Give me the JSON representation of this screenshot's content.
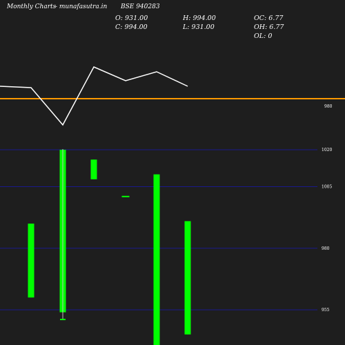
{
  "header": {
    "brand": "Monthly Charts",
    "site": "- munafasutra.in",
    "symbol": "BSE 940283"
  },
  "ohlc": {
    "open": "O: 931.00",
    "close": "C: 994.00",
    "high": "H: 994.00",
    "low": "L: 931.00",
    "oc": "OC: 6.77",
    "oh": "OH: 6.77",
    "ol": "OL: 0"
  },
  "colors": {
    "background": "#1e1e1e",
    "candle": "#00ff00",
    "price_line": "#ffffff",
    "marker_line": "#ff9900",
    "grid": "#1a1a8c",
    "text": "#ffffff"
  },
  "chart_data": [
    {
      "type": "line",
      "title": "",
      "ticks": [
        "980"
      ],
      "series": [
        {
          "values": [
            null,
            null,
            null,
            null,
            null,
            null
          ]
        }
      ],
      "reference_line": {
        "value": 980,
        "label": "980"
      }
    },
    {
      "type": "bar",
      "title": "",
      "ylim": [
        950,
        1025
      ],
      "ticks": [
        {
          "label": "1020",
          "value": 1020
        },
        {
          "label": "1005",
          "value": 1005
        },
        {
          "label": "980",
          "value": 980
        },
        {
          "label": "955",
          "value": 955
        }
      ],
      "candles": [
        {
          "open": 990,
          "close": 960,
          "high": 990,
          "low": 960
        },
        {
          "open": 1020,
          "close": 954,
          "high": 1020,
          "low": 954
        },
        {
          "open": 1016,
          "close": 1008,
          "high": 1016,
          "low": 1008
        },
        {
          "open": 1001,
          "close": 1001,
          "high": 1001,
          "low": 1001
        },
        {
          "open": 1010,
          "close": 938,
          "high": 1010,
          "low": 938
        },
        {
          "open": 991,
          "close": 945,
          "high": 991,
          "low": 945
        }
      ]
    }
  ]
}
